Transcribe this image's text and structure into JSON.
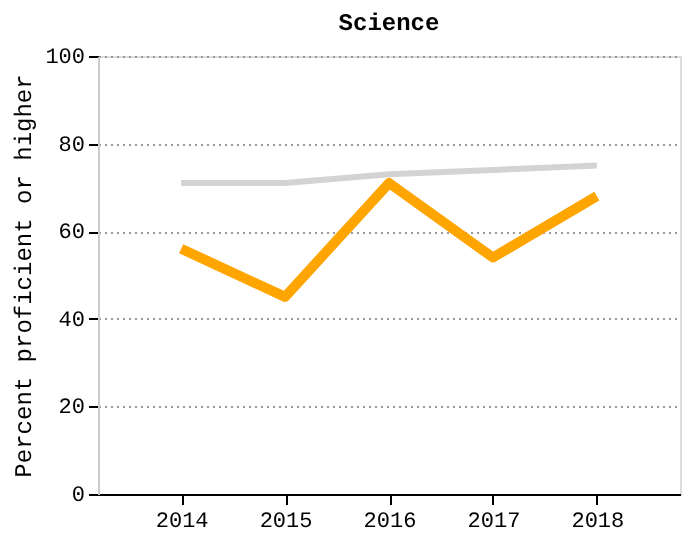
{
  "chart_data": {
    "type": "line",
    "title": "Science",
    "ylabel": "Percent proficient or higher",
    "categories": [
      "2014",
      "2015",
      "2016",
      "2017",
      "2018"
    ],
    "series": [
      {
        "color": "#d3d3d3",
        "values": [
          71,
          71,
          73,
          74,
          75
        ]
      },
      {
        "color": "#ffa500",
        "values": [
          56,
          45,
          71,
          54,
          68
        ]
      }
    ],
    "ylim": [
      0,
      100
    ],
    "yticks": [
      0,
      20,
      40,
      60,
      80,
      100
    ],
    "grid": "y",
    "marker": "none",
    "line_style": "solid"
  }
}
